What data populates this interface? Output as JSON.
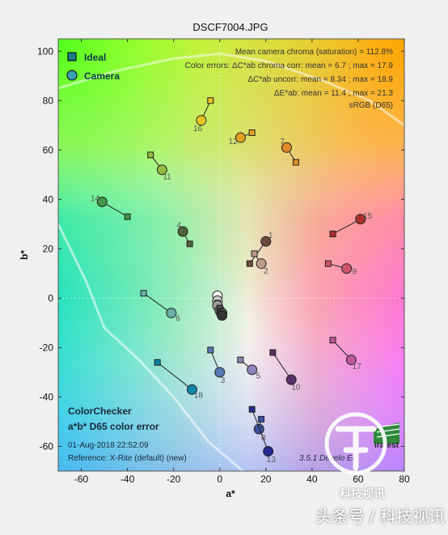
{
  "chart_data": {
    "type": "scatter",
    "title": "DSCF7004.JPG",
    "xlabel": "a*",
    "ylabel": "b*",
    "xlim": [
      -70,
      80
    ],
    "ylim": [
      -70,
      105
    ],
    "xticks": [
      -60,
      -40,
      -20,
      0,
      20,
      40,
      60,
      80
    ],
    "yticks": [
      -60,
      -40,
      -20,
      0,
      20,
      40,
      60,
      80,
      100
    ],
    "grid": false,
    "legend": {
      "position": "top-left",
      "items": [
        {
          "label": "Ideal",
          "marker": "square",
          "color": "#1a7a8a"
        },
        {
          "label": "Camera",
          "marker": "circle",
          "color": "#3aa0b8"
        }
      ]
    },
    "stats": [
      "Mean camera chroma (saturation) = 112.8%",
      "Color errors:  ΔC*ab chroma corr:  mean = 6.7 ;  max = 17.9",
      "ΔC*ab uncorr:  mean = 8.34 ;  max = 18.9",
      "ΔE*ab:  mean = 11.4 ;  max = 21.3",
      "sRGB (D65)"
    ],
    "footer": {
      "heading1": "ColorChecker",
      "heading2": "a*b* D65 color error",
      "date": "01-Aug-2018 22:52:09",
      "reference": "Reference:  X-Rite (default) (new)",
      "version": "3.5.1  Develo  Ed",
      "logo": "iratest"
    },
    "patches": [
      {
        "id": "1",
        "ideal": [
          13,
          14
        ],
        "camera": [
          20,
          23
        ],
        "color": "#6e4a3e"
      },
      {
        "id": "2",
        "ideal": [
          15,
          18
        ],
        "camera": [
          18,
          14
        ],
        "color": "#c09a88"
      },
      {
        "id": "3",
        "ideal": [
          -4,
          -21
        ],
        "camera": [
          0,
          -30
        ],
        "color": "#5a7ab4"
      },
      {
        "id": "4",
        "ideal": [
          -13,
          22
        ],
        "camera": [
          -16,
          27
        ],
        "color": "#50603a"
      },
      {
        "id": "5",
        "ideal": [
          9,
          -25
        ],
        "camera": [
          14,
          -29
        ],
        "color": "#8a82b8"
      },
      {
        "id": "6",
        "ideal": [
          -33,
          2
        ],
        "camera": [
          -21,
          -6
        ],
        "color": "#68b0a8"
      },
      {
        "id": "7",
        "ideal": [
          33,
          55
        ],
        "camera": [
          29,
          61
        ],
        "color": "#e08a2a"
      },
      {
        "id": "8",
        "ideal": [
          18,
          -49
        ],
        "camera": [
          17,
          -53
        ],
        "color": "#3a50a0"
      },
      {
        "id": "9",
        "ideal": [
          47,
          14
        ],
        "camera": [
          55,
          12
        ],
        "color": "#d0566a"
      },
      {
        "id": "10",
        "ideal": [
          23,
          -22
        ],
        "camera": [
          31,
          -33
        ],
        "color": "#5a3068"
      },
      {
        "id": "11",
        "ideal": [
          -30,
          58
        ],
        "camera": [
          -25,
          52
        ],
        "color": "#94ba3e"
      },
      {
        "id": "12",
        "ideal": [
          14,
          67
        ],
        "camera": [
          9,
          65
        ],
        "color": "#e2a224"
      },
      {
        "id": "13",
        "ideal": [
          14,
          -45
        ],
        "camera": [
          21,
          -62
        ],
        "color": "#242a8c"
      },
      {
        "id": "14",
        "ideal": [
          -40,
          33
        ],
        "camera": [
          -51,
          39
        ],
        "color": "#3e9644"
      },
      {
        "id": "15",
        "ideal": [
          49,
          26
        ],
        "camera": [
          61,
          32
        ],
        "color": "#b03030"
      },
      {
        "id": "16",
        "ideal": [
          -4,
          80
        ],
        "camera": [
          -8,
          72
        ],
        "color": "#e6c41e"
      },
      {
        "id": "17",
        "ideal": [
          49,
          -17
        ],
        "camera": [
          57,
          -25
        ],
        "color": "#bc5694"
      },
      {
        "id": "18",
        "ideal": [
          -27,
          -26
        ],
        "camera": [
          -12,
          -37
        ],
        "color": "#0c86a4"
      },
      {
        "id": "19",
        "ideal": [
          -1,
          1
        ],
        "camera": [
          -1,
          1
        ],
        "color": "#f2f2f2"
      },
      {
        "id": "20",
        "ideal": [
          -1,
          -1
        ],
        "camera": [
          -1,
          -1
        ],
        "color": "#c8c8c8"
      },
      {
        "id": "21",
        "ideal": [
          -1,
          -2
        ],
        "camera": [
          -1,
          -3
        ],
        "color": "#a0a0a0"
      },
      {
        "id": "22",
        "ideal": [
          0,
          -4
        ],
        "camera": [
          0,
          -5
        ],
        "color": "#7a7a7a"
      },
      {
        "id": "23",
        "ideal": [
          0,
          -5
        ],
        "camera": [
          1,
          -6
        ],
        "color": "#555555"
      },
      {
        "id": "24",
        "ideal": [
          0,
          -6
        ],
        "camera": [
          1,
          -7
        ],
        "color": "#333333"
      }
    ],
    "gamut_boundary": [
      [
        -70,
        30
      ],
      [
        -58,
        7
      ],
      [
        -50,
        -12
      ],
      [
        -35,
        -25
      ],
      [
        -20,
        -40
      ],
      [
        -5,
        -58
      ],
      [
        10,
        -70
      ]
    ],
    "gamut_top": [
      [
        -70,
        85
      ],
      [
        -45,
        92
      ],
      [
        -20,
        97
      ],
      [
        0,
        99
      ],
      [
        20,
        96
      ],
      [
        45,
        88
      ],
      [
        65,
        80
      ],
      [
        80,
        70
      ]
    ]
  },
  "watermark": {
    "logo_caption": "科技视讯",
    "text": "头条号 / 科技视讯"
  }
}
